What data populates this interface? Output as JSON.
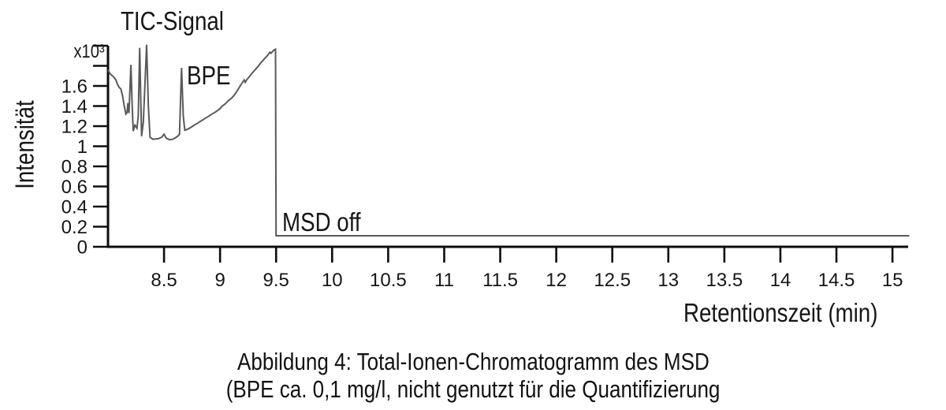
{
  "figure": {
    "annotations": {
      "tic_signal": "TIC-Signal",
      "bpe": "BPE",
      "msd_off": "MSD off",
      "y_multiplier": "x10³"
    },
    "axis_labels": {
      "y": "Intensität",
      "x": "Retentionszeit (min)"
    },
    "caption": {
      "line1": "Abbildung 4: Total-Ionen-Chromatogramm des MSD",
      "line2": "(BPE ca. 0,1 mg/l, nicht genutzt für die Quantifizierung"
    }
  },
  "chart_data": {
    "type": "line",
    "title": "TIC-Signal",
    "xlabel": "Retentionszeit (min)",
    "ylabel": "Intensität",
    "y_axis_multiplier": "x10³",
    "xlim": [
      8.0,
      15.15
    ],
    "ylim": [
      0,
      2.05
    ],
    "grid": false,
    "legend": "none",
    "x_ticks": [
      8.5,
      9,
      9.5,
      10,
      10.5,
      11,
      11.5,
      12,
      12.5,
      13,
      13.5,
      14,
      14.5,
      15
    ],
    "x_tick_labels": [
      "8.5",
      "9",
      "9.5",
      "10",
      "10.5",
      "11",
      "11.5",
      "12",
      "12.5",
      "13",
      "13.5",
      "14",
      "14.5",
      "15"
    ],
    "y_ticks": [
      0,
      0.2,
      0.4,
      0.6,
      0.8,
      1.0,
      1.2,
      1.4,
      1.6,
      1.8,
      2.0
    ],
    "y_tick_labels": [
      "0",
      "0.2",
      "0.4",
      "0.6",
      "0.8",
      "1",
      "1.2",
      "1.4",
      "1.6",
      "",
      ""
    ],
    "colors": {
      "line": "#595959",
      "axis": "#0d0d0d",
      "text": "#161616"
    },
    "annotations": [
      {
        "text": "TIC-Signal",
        "x": 8.1,
        "y": 2.15,
        "role": "title"
      },
      {
        "text": "BPE",
        "x": 8.77,
        "y": 1.7,
        "role": "peak-label"
      },
      {
        "text": "MSD off",
        "x": 9.56,
        "y": 0.3,
        "role": "event-label"
      }
    ],
    "events": [
      {
        "name": "MSD off",
        "time_min": 9.5,
        "signal_drops_to": 0.11
      }
    ],
    "peaks": [
      {
        "name": "BPE",
        "time_min": 8.66,
        "height_x1000": 1.78,
        "note": "ca. 0,1 mg/l, nicht genutzt für die Quantifizierung"
      }
    ],
    "series": [
      {
        "name": "TIC",
        "units": "intensity ×10³",
        "points": [
          [
            8.0,
            1.76
          ],
          [
            8.02,
            1.72
          ],
          [
            8.05,
            1.69
          ],
          [
            8.07,
            1.66
          ],
          [
            8.085,
            1.615
          ],
          [
            8.1,
            1.585
          ],
          [
            8.115,
            1.57
          ],
          [
            8.13,
            1.5
          ],
          [
            8.145,
            1.4
          ],
          [
            8.16,
            1.32
          ],
          [
            8.17,
            1.335
          ],
          [
            8.177,
            1.43
          ],
          [
            8.187,
            1.33
          ],
          [
            8.205,
            1.81
          ],
          [
            8.215,
            1.42
          ],
          [
            8.225,
            1.15
          ],
          [
            8.24,
            1.21
          ],
          [
            8.258,
            1.18
          ],
          [
            8.27,
            1.3
          ],
          [
            8.283,
            1.98
          ],
          [
            8.3,
            1.1
          ],
          [
            8.315,
            1.24
          ],
          [
            8.345,
            2.01
          ],
          [
            8.36,
            1.4
          ],
          [
            8.375,
            1.09
          ],
          [
            8.4,
            1.07
          ],
          [
            8.45,
            1.075
          ],
          [
            8.48,
            1.09
          ],
          [
            8.5,
            1.12
          ],
          [
            8.52,
            1.08
          ],
          [
            8.55,
            1.065
          ],
          [
            8.58,
            1.07
          ],
          [
            8.61,
            1.09
          ],
          [
            8.627,
            1.105
          ],
          [
            8.638,
            1.12
          ],
          [
            8.656,
            1.78
          ],
          [
            8.672,
            1.3
          ],
          [
            8.685,
            1.16
          ],
          [
            8.7,
            1.165
          ],
          [
            8.72,
            1.175
          ],
          [
            8.75,
            1.195
          ],
          [
            8.77,
            1.21
          ],
          [
            8.8,
            1.23
          ],
          [
            8.82,
            1.245
          ],
          [
            8.85,
            1.265
          ],
          [
            8.87,
            1.28
          ],
          [
            8.9,
            1.3
          ],
          [
            8.92,
            1.315
          ],
          [
            8.95,
            1.335
          ],
          [
            8.97,
            1.35
          ],
          [
            9.0,
            1.375
          ],
          [
            9.02,
            1.4
          ],
          [
            9.05,
            1.425
          ],
          [
            9.07,
            1.45
          ],
          [
            9.1,
            1.475
          ],
          [
            9.12,
            1.5
          ],
          [
            9.14,
            1.53
          ],
          [
            9.16,
            1.565
          ],
          [
            9.18,
            1.6
          ],
          [
            9.2,
            1.635
          ],
          [
            9.215,
            1.66
          ],
          [
            9.225,
            1.635
          ],
          [
            9.24,
            1.665
          ],
          [
            9.26,
            1.69
          ],
          [
            9.28,
            1.72
          ],
          [
            9.3,
            1.745
          ],
          [
            9.32,
            1.77
          ],
          [
            9.34,
            1.795
          ],
          [
            9.36,
            1.825
          ],
          [
            9.38,
            1.85
          ],
          [
            9.4,
            1.875
          ],
          [
            9.42,
            1.9
          ],
          [
            9.435,
            1.92
          ],
          [
            9.445,
            1.935
          ],
          [
            9.455,
            1.925
          ],
          [
            9.47,
            1.945
          ],
          [
            9.485,
            1.96
          ],
          [
            9.495,
            1.965
          ],
          [
            9.5,
            0.11
          ],
          [
            15.15,
            0.11
          ]
        ]
      }
    ]
  }
}
